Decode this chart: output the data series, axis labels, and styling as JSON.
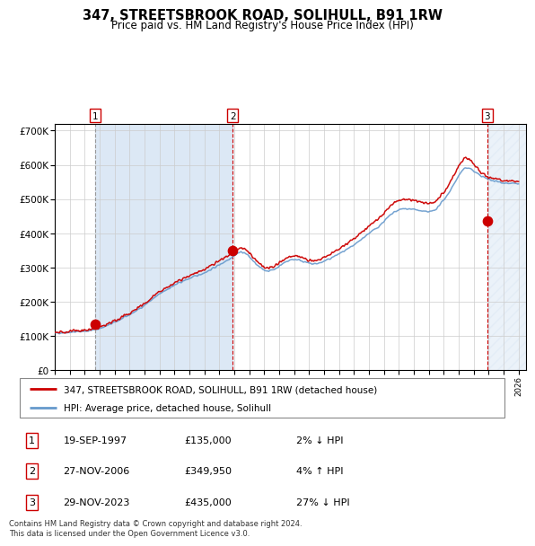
{
  "title": "347, STREETSBROOK ROAD, SOLIHULL, B91 1RW",
  "subtitle": "Price paid vs. HM Land Registry's House Price Index (HPI)",
  "xlim": [
    1995.0,
    2026.5
  ],
  "ylim": [
    0,
    720000
  ],
  "yticks": [
    0,
    100000,
    200000,
    300000,
    400000,
    500000,
    600000,
    700000
  ],
  "ytick_labels": [
    "£0",
    "£100K",
    "£200K",
    "£300K",
    "£400K",
    "£500K",
    "£600K",
    "£700K"
  ],
  "sale_dates": [
    1997.72,
    2006.9,
    2023.91
  ],
  "sale_prices": [
    135000,
    349950,
    435000
  ],
  "sale_labels": [
    "1",
    "2",
    "3"
  ],
  "legend_line1": "347, STREETSBROOK ROAD, SOLIHULL, B91 1RW (detached house)",
  "legend_line2": "HPI: Average price, detached house, Solihull",
  "table_data": [
    [
      "1",
      "19-SEP-1997",
      "£135,000",
      "2% ↓ HPI"
    ],
    [
      "2",
      "27-NOV-2006",
      "£349,950",
      "4% ↑ HPI"
    ],
    [
      "3",
      "29-NOV-2023",
      "£435,000",
      "27% ↓ HPI"
    ]
  ],
  "footer": "Contains HM Land Registry data © Crown copyright and database right 2024.\nThis data is licensed under the Open Government Licence v3.0.",
  "line_color_red": "#cc0000",
  "line_color_blue": "#6699cc",
  "dot_color": "#cc0000",
  "span_color": "#dce8f5",
  "hatch_color": "#c0cfe0"
}
